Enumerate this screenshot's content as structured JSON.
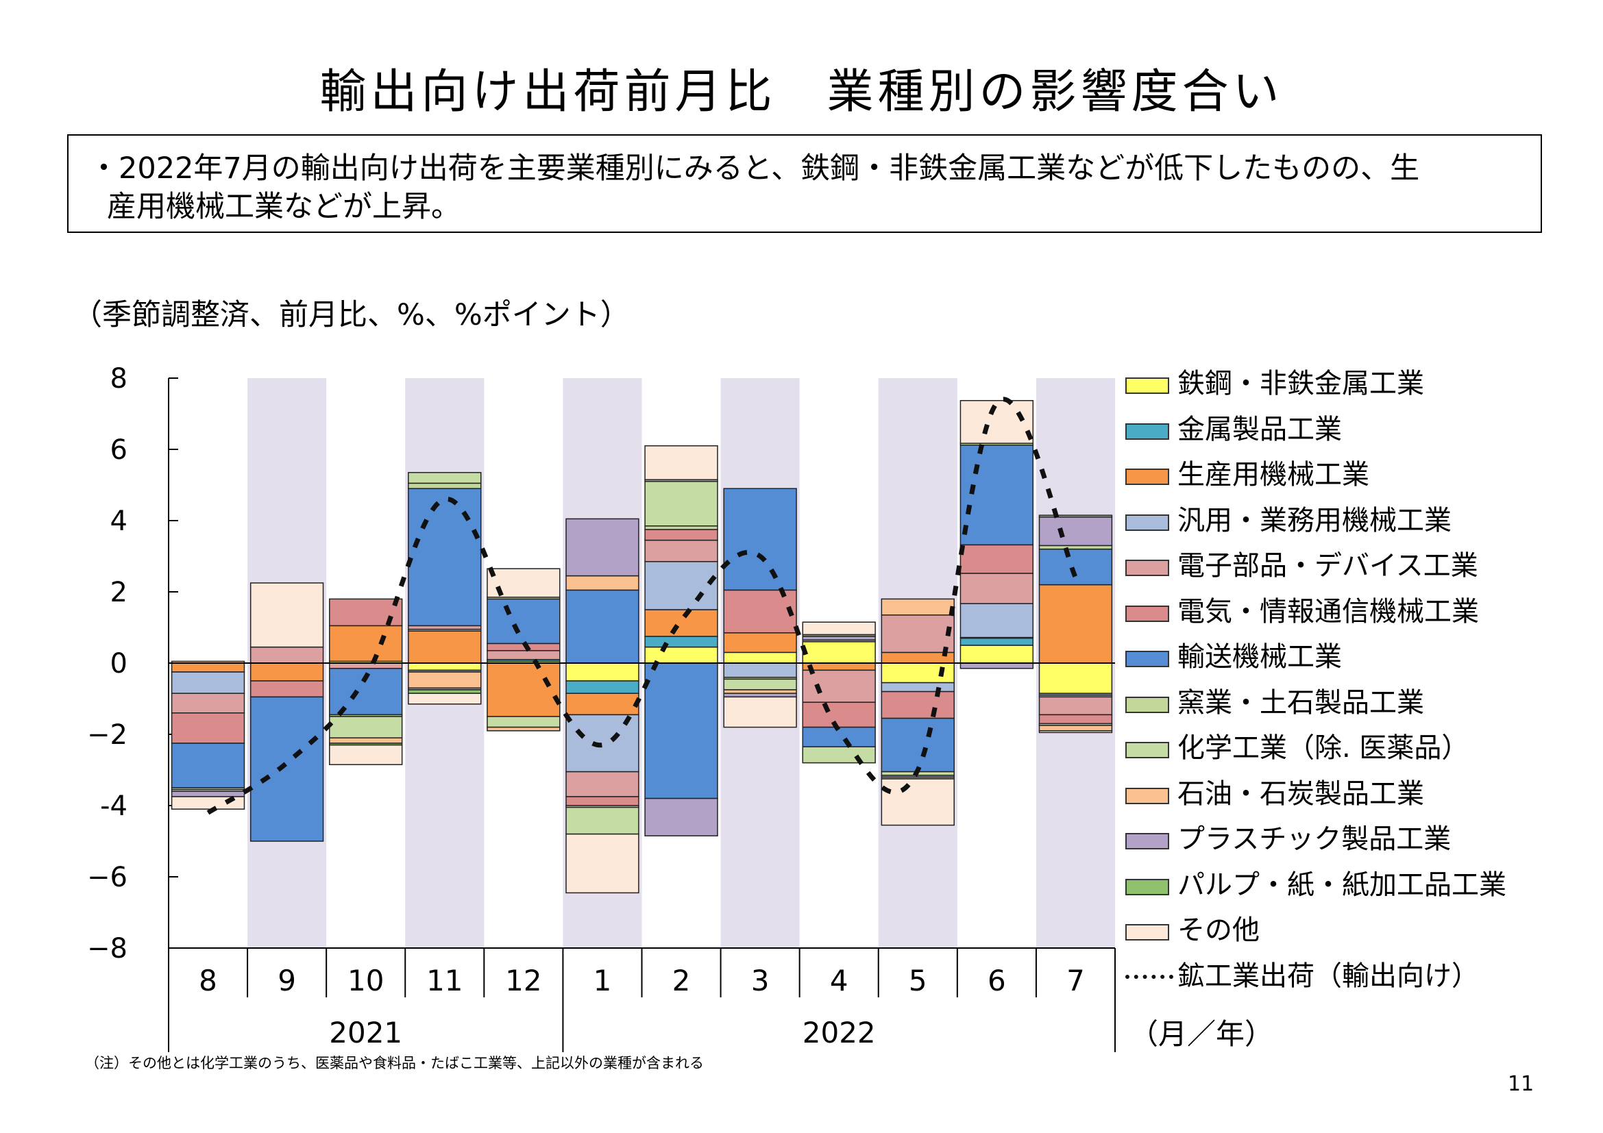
{
  "page": {
    "title": "輸出向け出荷前月比　業種別の影響度合い",
    "summary_line1": "・2022年7月の輸出向け出荷を主要業種別にみると、鉄鋼・非鉄金属工業などが低下したものの、生",
    "summary_line2": "産用機械工業などが上昇。",
    "units": "（季節調整済、前月比、%、%ポイント）",
    "note": "（注）その他とは化学工業のうち、医薬品や食料品・たばこ工業等、上記以外の業種が含まれる",
    "page_number": "11",
    "x_unit_label": "（月／年）"
  },
  "chart_data": {
    "type": "bar",
    "stacked": true,
    "ylim": [
      -8,
      8
    ],
    "yticks": [
      "8",
      "6",
      "4",
      "2",
      "0",
      "−2",
      "-4",
      "−6",
      "−8"
    ],
    "categories": [
      "8",
      "9",
      "10",
      "11",
      "12",
      "1",
      "2",
      "3",
      "4",
      "5",
      "6",
      "7"
    ],
    "years": [
      {
        "label": "2021",
        "from": 0,
        "to": 4
      },
      {
        "label": "2022",
        "from": 5,
        "to": 11
      }
    ],
    "shaded_months": [
      1,
      3,
      5,
      7,
      9,
      11
    ],
    "series": [
      {
        "name": "鉄鋼・非鉄金属工業",
        "color": "#FFFF66",
        "values": [
          0,
          0,
          0.05,
          -0.2,
          0.05,
          -0.5,
          0.45,
          0.3,
          0.6,
          -0.55,
          0.5,
          -0.85
        ]
      },
      {
        "name": "金属製品工業",
        "color": "#4BACC6",
        "values": [
          0,
          0,
          0,
          -0.05,
          0.05,
          -0.35,
          0.3,
          0,
          0.05,
          0,
          0.2,
          -0.05
        ]
      },
      {
        "name": "生産用機械工業",
        "color": "#F79646",
        "values": [
          -0.25,
          -0.5,
          1.0,
          0.9,
          -1.5,
          -0.6,
          0.75,
          0.55,
          -0.2,
          0.3,
          0.02,
          2.2
        ]
      },
      {
        "name": "汎用・業務用機械工業",
        "color": "#A9BCDC",
        "values": [
          -0.6,
          0,
          0,
          0.05,
          0,
          -1.6,
          1.35,
          -0.4,
          0,
          -0.25,
          0.95,
          -0.05
        ]
      },
      {
        "name": "電子部品・デバイス工業",
        "color": "#DDA0A0",
        "values": [
          -0.55,
          0.45,
          -0.15,
          0.1,
          0.25,
          -0.7,
          0.6,
          0,
          -0.9,
          1.05,
          0.85,
          -0.5
        ]
      },
      {
        "name": "電気・情報通信機械工業",
        "color": "#DA8C8C",
        "values": [
          -0.85,
          -0.45,
          0.75,
          0,
          0.2,
          -0.25,
          0.3,
          1.2,
          -0.7,
          -0.75,
          0.8,
          -0.25
        ]
      },
      {
        "name": "輸送機械工業",
        "color": "#548DD4",
        "values": [
          -1.25,
          -4.05,
          -1.3,
          3.85,
          1.25,
          2.05,
          -3.8,
          2.85,
          -0.55,
          -1.5,
          2.8,
          1.0
        ]
      },
      {
        "name": "窯業・土石製品工業",
        "color": "#C4D79B",
        "values": [
          -0.05,
          0,
          -0.05,
          0.15,
          0.05,
          -0.05,
          0.1,
          -0.05,
          0,
          0,
          0,
          0.1
        ]
      },
      {
        "name": "化学工業（除. 医薬品）",
        "color": "#C6DCA5",
        "values": [
          -0.05,
          0,
          -0.6,
          0.3,
          -0.3,
          -0.75,
          1.25,
          -0.3,
          -0.45,
          -0.1,
          0.05,
          -0.05
        ]
      },
      {
        "name": "石油・石炭製品工業",
        "color": "#FAC090",
        "values": [
          0.05,
          0,
          -0.15,
          -0.45,
          -0.1,
          0.4,
          0,
          -0.1,
          0,
          0.45,
          0,
          -0.15
        ]
      },
      {
        "name": "プラスチック製品工業",
        "color": "#B3A2C7",
        "values": [
          -0.15,
          0,
          0,
          -0.05,
          0,
          1.6,
          -1.05,
          -0.1,
          0.1,
          -0.05,
          -0.15,
          0.8
        ]
      },
      {
        "name": "パルプ・紙・紙加工品工業",
        "color": "#8FC06B",
        "values": [
          0,
          0,
          -0.05,
          -0.1,
          0,
          0,
          0.05,
          0,
          0.05,
          -0.05,
          0,
          0.05
        ]
      },
      {
        "name": "その他",
        "color": "#FCE9DA",
        "values": [
          -0.35,
          1.8,
          -0.55,
          -0.3,
          0.8,
          -1.65,
          0.95,
          -0.85,
          0.35,
          -1.3,
          1.2,
          -0.05
        ]
      }
    ],
    "line": {
      "name": "鉱工業出荷（輸出向け）",
      "values": [
        -4.2,
        -2.8,
        -0.4,
        4.6,
        0.6,
        -2.3,
        1.2,
        3.0,
        -1.9,
        -3.0,
        7.3,
        2.4
      ]
    }
  }
}
